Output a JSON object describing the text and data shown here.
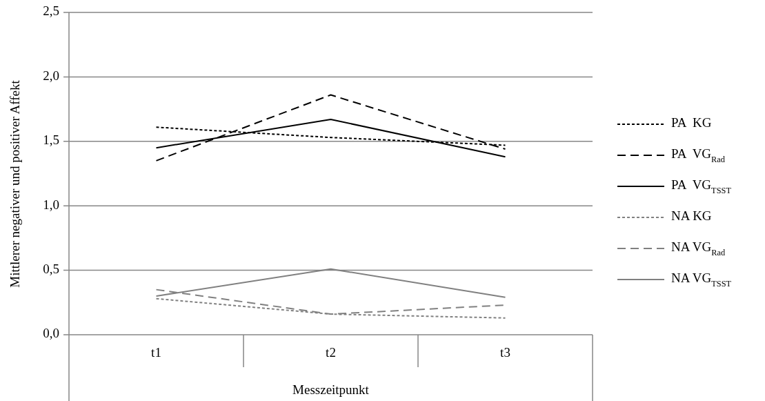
{
  "chart_data": {
    "type": "line",
    "xlabel": "Messzeitpunkt",
    "ylabel": "Mittlerer negativer und positiver Affekt",
    "categories": [
      "t1",
      "t2",
      "t3"
    ],
    "ylim": [
      0,
      2.5
    ],
    "yticks": [
      {
        "value": 0,
        "label": "0,0"
      },
      {
        "value": 0.5,
        "label": "0,5"
      },
      {
        "value": 1,
        "label": "1,0"
      },
      {
        "value": 1.5,
        "label": "1,5"
      },
      {
        "value": 2,
        "label": "2,0"
      },
      {
        "value": 2.5,
        "label": "2,5"
      }
    ],
    "grid": "y",
    "legend": "right",
    "series": [
      {
        "name": "PA  KG",
        "color": "#000000",
        "line_style": "dotted",
        "values": [
          1.61,
          1.53,
          1.47
        ]
      },
      {
        "name": "PA  VG$_{Rad}$",
        "color": "#000000",
        "line_style": "dashed",
        "values": [
          1.35,
          1.86,
          1.44
        ]
      },
      {
        "name": "PA  VG$_{TSST}$",
        "color": "#000000",
        "line_style": "solid",
        "values": [
          1.45,
          1.67,
          1.38
        ]
      },
      {
        "name": "NA KG",
        "color": "#808080",
        "line_style": "dotted",
        "values": [
          0.28,
          0.16,
          0.13
        ]
      },
      {
        "name": "NA VG$_{Rad}$",
        "color": "#808080",
        "line_style": "dashed",
        "values": [
          0.35,
          0.16,
          0.23
        ]
      },
      {
        "name": "NA VG$_{TSST}$",
        "color": "#808080",
        "line_style": "solid",
        "values": [
          0.3,
          0.51,
          0.29
        ]
      }
    ]
  }
}
